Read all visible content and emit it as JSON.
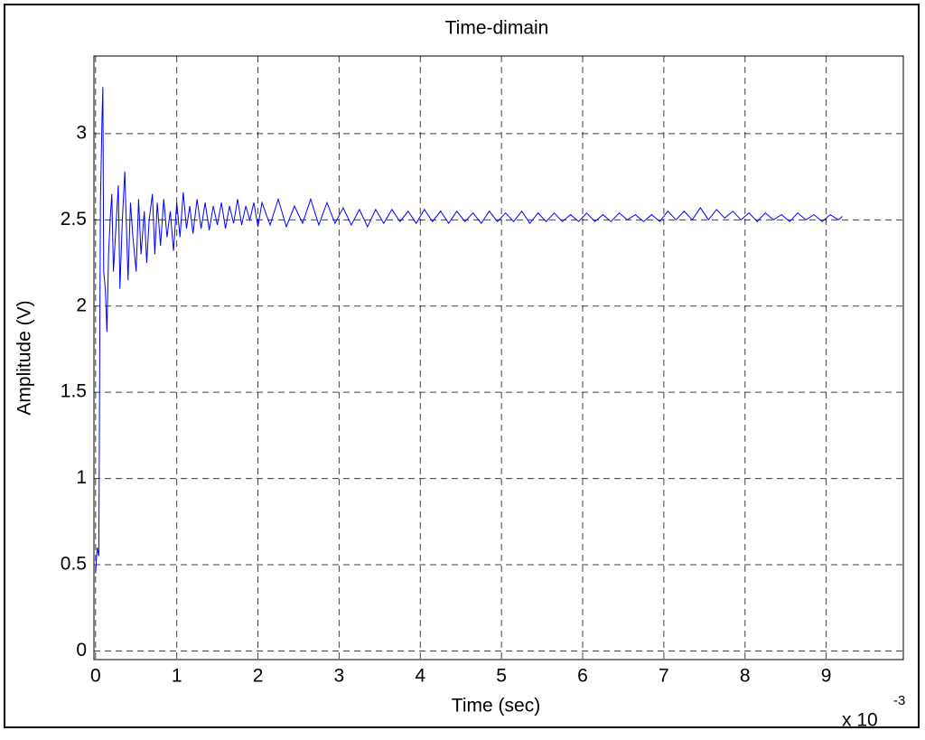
{
  "chart_data": {
    "type": "line",
    "title": "Time-dimain",
    "xlabel": "Time (sec)",
    "ylabel": "Amplitude (V)",
    "x_multiplier": {
      "base": "x 10",
      "exponent": "-3"
    },
    "color": "#0000ff",
    "grid": true,
    "xlim": [
      -0.02,
      9.95
    ],
    "xticks": [
      0,
      1,
      2,
      3,
      4,
      5,
      6,
      7,
      8,
      9
    ],
    "ylim": [
      -0.05,
      3.45
    ],
    "yticks": [
      0,
      0.5,
      1,
      1.5,
      2,
      2.5,
      3
    ],
    "x": [
      0,
      0.02,
      0.04,
      0.06,
      0.08,
      0.09,
      0.1,
      0.12,
      0.14,
      0.16,
      0.18,
      0.2,
      0.22,
      0.25,
      0.28,
      0.3,
      0.33,
      0.36,
      0.4,
      0.43,
      0.46,
      0.5,
      0.53,
      0.56,
      0.6,
      0.63,
      0.66,
      0.7,
      0.73,
      0.76,
      0.8,
      0.84,
      0.88,
      0.92,
      0.96,
      1.0,
      1.04,
      1.08,
      1.12,
      1.16,
      1.2,
      1.25,
      1.3,
      1.35,
      1.4,
      1.45,
      1.5,
      1.55,
      1.6,
      1.65,
      1.7,
      1.75,
      1.8,
      1.85,
      1.9,
      1.95,
      2.0,
      2.05,
      2.15,
      2.25,
      2.35,
      2.45,
      2.55,
      2.65,
      2.75,
      2.85,
      2.95,
      3.05,
      3.15,
      3.25,
      3.35,
      3.45,
      3.55,
      3.65,
      3.75,
      3.85,
      3.95,
      4.05,
      4.15,
      4.25,
      4.35,
      4.45,
      4.55,
      4.65,
      4.75,
      4.85,
      4.95,
      5.05,
      5.15,
      5.25,
      5.35,
      5.45,
      5.55,
      5.65,
      5.75,
      5.85,
      5.95,
      6.05,
      6.15,
      6.25,
      6.35,
      6.45,
      6.55,
      6.65,
      6.75,
      6.85,
      6.95,
      7.05,
      7.15,
      7.25,
      7.35,
      7.45,
      7.55,
      7.65,
      7.75,
      7.85,
      7.95,
      8.05,
      8.15,
      8.25,
      8.35,
      8.45,
      8.55,
      8.65,
      8.75,
      8.85,
      8.95,
      9.05,
      9.15,
      9.2
    ],
    "values": [
      0.45,
      0.6,
      0.55,
      2.6,
      3.1,
      3.27,
      2.2,
      2.1,
      1.85,
      2.3,
      2.5,
      2.65,
      2.2,
      2.45,
      2.7,
      2.1,
      2.5,
      2.78,
      2.15,
      2.6,
      2.4,
      2.2,
      2.62,
      2.3,
      2.55,
      2.25,
      2.5,
      2.65,
      2.3,
      2.6,
      2.35,
      2.62,
      2.4,
      2.55,
      2.32,
      2.6,
      2.4,
      2.66,
      2.45,
      2.58,
      2.42,
      2.62,
      2.45,
      2.6,
      2.44,
      2.58,
      2.47,
      2.6,
      2.45,
      2.58,
      2.48,
      2.62,
      2.47,
      2.58,
      2.5,
      2.6,
      2.46,
      2.6,
      2.47,
      2.62,
      2.46,
      2.58,
      2.48,
      2.62,
      2.47,
      2.6,
      2.48,
      2.57,
      2.47,
      2.56,
      2.46,
      2.56,
      2.48,
      2.56,
      2.49,
      2.55,
      2.48,
      2.56,
      2.49,
      2.55,
      2.48,
      2.55,
      2.49,
      2.54,
      2.48,
      2.55,
      2.49,
      2.54,
      2.49,
      2.55,
      2.48,
      2.54,
      2.49,
      2.54,
      2.49,
      2.53,
      2.49,
      2.54,
      2.49,
      2.53,
      2.49,
      2.54,
      2.5,
      2.53,
      2.49,
      2.53,
      2.49,
      2.55,
      2.5,
      2.55,
      2.5,
      2.57,
      2.5,
      2.56,
      2.51,
      2.55,
      2.5,
      2.54,
      2.49,
      2.54,
      2.5,
      2.53,
      2.49,
      2.54,
      2.5,
      2.53,
      2.49,
      2.53,
      2.5,
      2.52
    ]
  }
}
